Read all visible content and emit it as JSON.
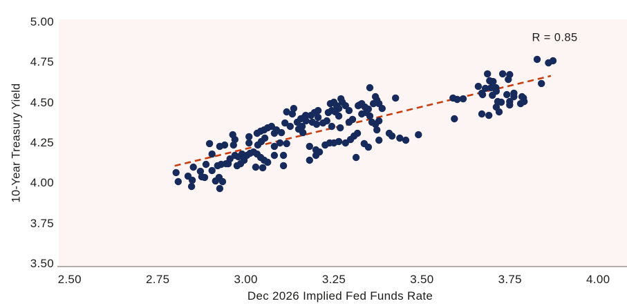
{
  "chart_data": {
    "type": "scatter",
    "title": "",
    "xlabel": "Dec 2026 Implied Fed Funds Rate",
    "ylabel": "10-Year Treasury Yield",
    "xlim": [
      2.469,
      4.082
    ],
    "ylim": [
      3.483,
      5.017
    ],
    "grid": false,
    "legend": null,
    "x_ticks": [
      2.5,
      2.75,
      3.0,
      3.25,
      3.5,
      3.75,
      4.0
    ],
    "x_tick_labels": [
      "2.50",
      "2.75",
      "3.00",
      "3.25",
      "3.50",
      "3.75",
      "4.00"
    ],
    "y_ticks": [
      3.5,
      3.75,
      4.0,
      4.25,
      4.5,
      4.75,
      5.0
    ],
    "y_tick_labels": [
      "3.50",
      "3.75",
      "4.00",
      "4.25",
      "4.50",
      "4.75",
      "5.00"
    ],
    "annotation": {
      "text": "R = 0.85",
      "x": 3.877,
      "y": 4.901
    },
    "trendline": {
      "x1": 2.798,
      "y1": 4.108,
      "x2": 3.866,
      "y2": 4.666,
      "style": "dashed"
    },
    "points": [
      [
        2.802,
        4.066
      ],
      [
        2.808,
        4.01
      ],
      [
        2.836,
        4.044
      ],
      [
        2.848,
        4.019
      ],
      [
        2.846,
        3.98
      ],
      [
        2.851,
        4.1
      ],
      [
        2.871,
        4.074
      ],
      [
        2.875,
        4.04
      ],
      [
        2.887,
        4.117
      ],
      [
        2.883,
        4.036
      ],
      [
        2.897,
        4.246
      ],
      [
        2.904,
        4.181
      ],
      [
        2.904,
        4.079
      ],
      [
        2.914,
        4.014
      ],
      [
        2.92,
        4.109
      ],
      [
        2.924,
        4.036
      ],
      [
        2.926,
        4.229
      ],
      [
        2.926,
        3.967
      ],
      [
        2.93,
        4.117
      ],
      [
        2.934,
        4.01
      ],
      [
        2.94,
        4.237
      ],
      [
        2.944,
        4.121
      ],
      [
        2.95,
        4.121
      ],
      [
        2.955,
        4.151
      ],
      [
        2.963,
        4.301
      ],
      [
        2.969,
        4.271
      ],
      [
        2.965,
        4.237
      ],
      [
        2.969,
        4.173
      ],
      [
        2.975,
        4.109
      ],
      [
        2.979,
        4.164
      ],
      [
        2.985,
        4.121
      ],
      [
        2.989,
        4.181
      ],
      [
        2.995,
        4.143
      ],
      [
        3.003,
        4.173
      ],
      [
        3.009,
        4.289
      ],
      [
        3.009,
        4.25
      ],
      [
        3.012,
        4.186
      ],
      [
        3.022,
        4.194
      ],
      [
        3.028,
        4.1
      ],
      [
        3.032,
        4.31
      ],
      [
        3.032,
        4.181
      ],
      [
        3.034,
        4.237
      ],
      [
        3.042,
        4.323
      ],
      [
        3.042,
        4.16
      ],
      [
        3.044,
        4.259
      ],
      [
        3.048,
        4.096
      ],
      [
        3.052,
        4.331
      ],
      [
        3.052,
        4.143
      ],
      [
        3.054,
        4.28
      ],
      [
        3.062,
        4.344
      ],
      [
        3.062,
        4.13
      ],
      [
        3.073,
        4.353
      ],
      [
        3.081,
        4.31
      ],
      [
        3.081,
        4.229
      ],
      [
        3.081,
        4.173
      ],
      [
        3.087,
        4.331
      ],
      [
        3.097,
        4.25
      ],
      [
        3.101,
        4.314
      ],
      [
        3.107,
        4.173
      ],
      [
        3.107,
        4.109
      ],
      [
        3.111,
        4.374
      ],
      [
        3.116,
        4.443
      ],
      [
        3.116,
        4.246
      ],
      [
        3.126,
        4.353
      ],
      [
        3.132,
        4.43
      ],
      [
        3.136,
        4.464
      ],
      [
        3.146,
        4.379
      ],
      [
        3.15,
        4.336
      ],
      [
        3.156,
        4.4
      ],
      [
        3.16,
        4.353
      ],
      [
        3.162,
        4.314
      ],
      [
        3.166,
        4.409
      ],
      [
        3.17,
        4.421
      ],
      [
        3.171,
        4.387
      ],
      [
        3.181,
        4.229
      ],
      [
        3.181,
        4.143
      ],
      [
        3.185,
        4.421
      ],
      [
        3.189,
        4.379
      ],
      [
        3.195,
        4.439
      ],
      [
        3.199,
        4.207
      ],
      [
        3.199,
        4.173
      ],
      [
        3.201,
        4.366
      ],
      [
        3.205,
        4.451
      ],
      [
        3.205,
        4.409
      ],
      [
        3.209,
        4.194
      ],
      [
        3.219,
        4.374
      ],
      [
        3.225,
        4.237
      ],
      [
        3.23,
        4.387
      ],
      [
        3.234,
        4.439
      ],
      [
        3.238,
        4.25
      ],
      [
        3.24,
        4.494
      ],
      [
        3.244,
        4.451
      ],
      [
        3.244,
        4.353
      ],
      [
        3.25,
        4.503
      ],
      [
        3.25,
        4.25
      ],
      [
        3.254,
        4.443
      ],
      [
        3.258,
        4.481
      ],
      [
        3.264,
        4.464
      ],
      [
        3.264,
        4.417
      ],
      [
        3.264,
        4.259
      ],
      [
        3.268,
        4.344
      ],
      [
        3.27,
        4.524
      ],
      [
        3.274,
        4.503
      ],
      [
        3.283,
        4.481
      ],
      [
        3.283,
        4.25
      ],
      [
        3.293,
        4.451
      ],
      [
        3.293,
        4.379
      ],
      [
        3.297,
        4.271
      ],
      [
        3.303,
        4.396
      ],
      [
        3.307,
        4.293
      ],
      [
        3.313,
        4.16
      ],
      [
        3.317,
        4.31
      ],
      [
        3.319,
        4.481
      ],
      [
        3.323,
        4.486
      ],
      [
        3.329,
        4.494
      ],
      [
        3.329,
        4.43
      ],
      [
        3.336,
        4.246
      ],
      [
        3.338,
        4.473
      ],
      [
        3.342,
        4.439
      ],
      [
        3.348,
        4.46
      ],
      [
        3.348,
        4.224
      ],
      [
        3.352,
        4.593
      ],
      [
        3.352,
        4.417
      ],
      [
        3.358,
        4.379
      ],
      [
        3.362,
        4.494
      ],
      [
        3.368,
        4.537
      ],
      [
        3.368,
        4.366
      ],
      [
        3.372,
        4.516
      ],
      [
        3.372,
        4.331
      ],
      [
        3.378,
        4.494
      ],
      [
        3.378,
        4.387
      ],
      [
        3.378,
        4.267
      ],
      [
        3.387,
        4.464
      ],
      [
        3.407,
        4.31
      ],
      [
        3.415,
        4.293
      ],
      [
        3.425,
        4.529
      ],
      [
        3.437,
        4.28
      ],
      [
        3.454,
        4.267
      ],
      [
        3.49,
        4.301
      ],
      [
        3.588,
        4.529
      ],
      [
        3.6,
        4.52
      ],
      [
        3.592,
        4.4
      ],
      [
        3.617,
        4.524
      ],
      [
        3.66,
        4.601
      ],
      [
        3.67,
        4.559
      ],
      [
        3.67,
        4.43
      ],
      [
        3.672,
        4.55
      ],
      [
        3.68,
        4.589
      ],
      [
        3.686,
        4.679
      ],
      [
        3.69,
        4.421
      ],
      [
        3.692,
        4.636
      ],
      [
        3.696,
        4.593
      ],
      [
        3.7,
        4.546
      ],
      [
        3.702,
        4.631
      ],
      [
        3.71,
        4.593
      ],
      [
        3.711,
        4.571
      ],
      [
        3.711,
        4.473
      ],
      [
        3.715,
        4.507
      ],
      [
        3.719,
        4.443
      ],
      [
        3.725,
        4.503
      ],
      [
        3.729,
        4.679
      ],
      [
        3.741,
        4.55
      ],
      [
        3.745,
        4.644
      ],
      [
        3.749,
        4.674
      ],
      [
        3.749,
        4.507
      ],
      [
        3.749,
        4.486
      ],
      [
        3.761,
        4.559
      ],
      [
        3.761,
        4.537
      ],
      [
        3.78,
        4.494
      ],
      [
        3.784,
        4.537
      ],
      [
        3.788,
        4.529
      ],
      [
        3.79,
        4.507
      ],
      [
        3.827,
        4.769
      ],
      [
        3.859,
        4.747
      ],
      [
        3.872,
        4.76
      ],
      [
        3.839,
        4.619
      ]
    ]
  },
  "colors": {
    "point_color": "#162a5c",
    "trendline_color": "#c83c0e",
    "plot_background": "#fdf5f3",
    "page_background": "#ffffff",
    "text_color": "#1d1d1b",
    "axis_line_color": "#b3adab"
  }
}
